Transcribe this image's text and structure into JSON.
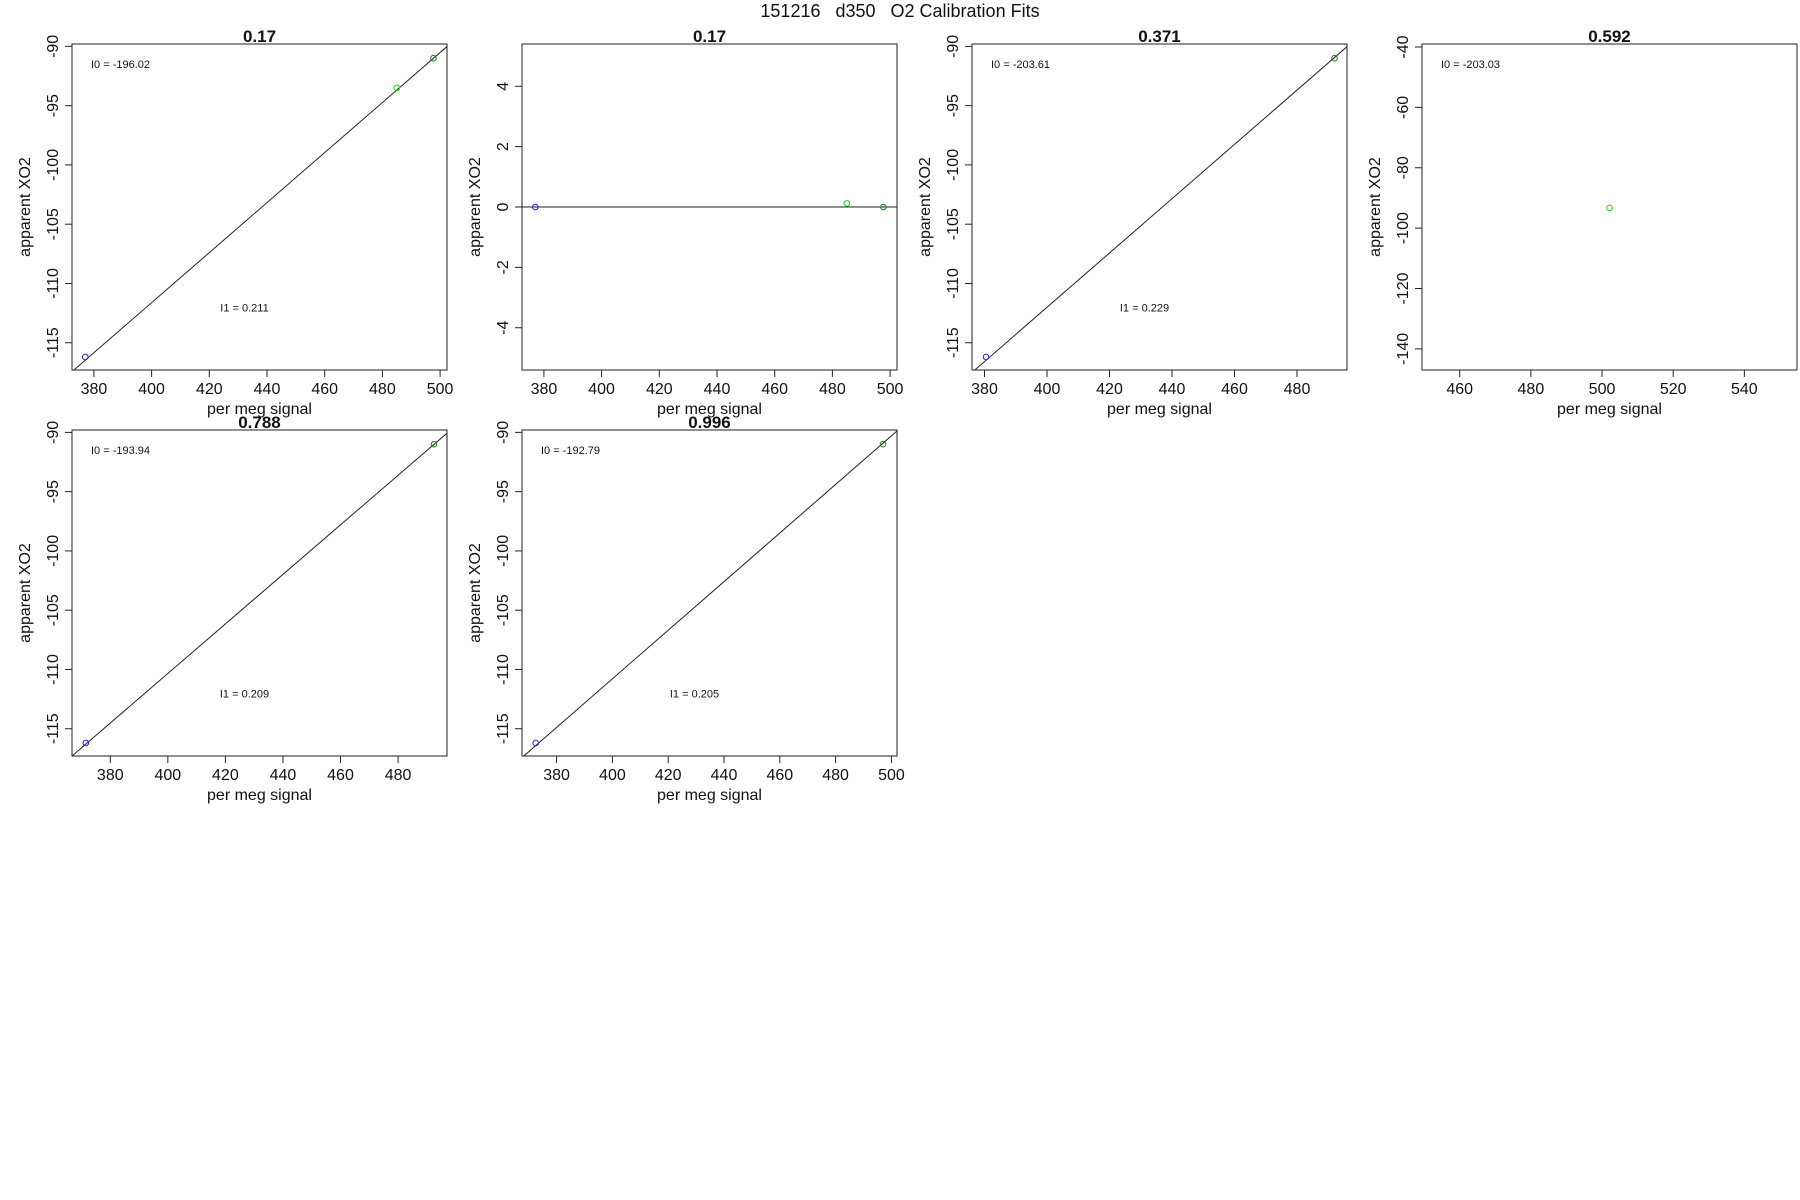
{
  "figure": {
    "title": "151216   d350   O2 Calibration Fits"
  },
  "chart_data": [
    {
      "type": "scatter",
      "title": "0.17",
      "xlabel": "per meg signal",
      "ylabel": "apparent XO2",
      "xticks": [
        380,
        400,
        420,
        440,
        460,
        480,
        500
      ],
      "yticks": [
        -90,
        -95,
        -100,
        -105,
        -110,
        -115
      ],
      "xlim": [
        372.4,
        502.4
      ],
      "ylim": [
        -117.3,
        -89.8
      ],
      "points": [
        {
          "x": 377.0,
          "y": -116.2,
          "color": "#2222cc"
        },
        {
          "x": 485.0,
          "y": -93.5,
          "color": "#22cc22"
        },
        {
          "x": 497.7,
          "y": -91.0,
          "color": "#227722"
        }
      ],
      "fit": {
        "intercept": -196.02,
        "slope": 0.211
      },
      "annotations": [
        {
          "text": "I0 =  -196.02",
          "pos": "top-left"
        },
        {
          "text": "I1 =  0.211",
          "pos": "center-low"
        }
      ],
      "grid": false
    },
    {
      "type": "scatter",
      "title": "0.17",
      "xlabel": "per meg signal",
      "ylabel": "apparent XO2",
      "xticks": [
        380,
        400,
        420,
        440,
        460,
        480,
        500
      ],
      "yticks": [
        4,
        2,
        0,
        -2,
        -4
      ],
      "xlim": [
        372.4,
        502.4
      ],
      "ylim": [
        -5.4,
        5.4
      ],
      "points": [
        {
          "x": 377.0,
          "y": 0.0,
          "color": "#2222cc"
        },
        {
          "x": 485.0,
          "y": 0.12,
          "color": "#22cc22"
        },
        {
          "x": 497.7,
          "y": 0.0,
          "color": "#227722"
        }
      ],
      "fit": {
        "intercept": 0,
        "slope": 0
      },
      "annotations": [],
      "grid": false
    },
    {
      "type": "scatter",
      "title": "0.371",
      "xlabel": "per meg signal",
      "ylabel": "apparent XO2",
      "xticks": [
        380,
        400,
        420,
        440,
        460,
        480
      ],
      "yticks": [
        -90,
        -95,
        -100,
        -105,
        -110,
        -115
      ],
      "xlim": [
        376.0,
        496.0
      ],
      "ylim": [
        -117.3,
        -89.8
      ],
      "points": [
        {
          "x": 380.5,
          "y": -116.2,
          "color": "#2222cc"
        },
        {
          "x": 492.0,
          "y": -91.0,
          "color": "#227722"
        }
      ],
      "fit": {
        "intercept": -203.61,
        "slope": 0.229
      },
      "annotations": [
        {
          "text": "I0 =  -203.61",
          "pos": "top-left"
        },
        {
          "text": "I1 =  0.229",
          "pos": "center-low"
        }
      ],
      "grid": false
    },
    {
      "type": "scatter",
      "title": "0.592",
      "xlabel": "per meg signal",
      "ylabel": "apparent XO2",
      "xticks": [
        460,
        480,
        500,
        520,
        540
      ],
      "yticks": [
        -40,
        -60,
        -80,
        -100,
        -120,
        -140
      ],
      "xlim": [
        449.4,
        554.8
      ],
      "ylim": [
        -147.0,
        -39.0
      ],
      "points": [
        {
          "x": 502.1,
          "y": -93.3,
          "color": "#22cc22"
        }
      ],
      "fit": null,
      "annotations": [
        {
          "text": "I0 =  -203.03",
          "pos": "top-left"
        }
      ],
      "grid": false
    },
    {
      "type": "scatter",
      "title": "0.788",
      "xlabel": "per meg signal",
      "ylabel": "apparent XO2",
      "xticks": [
        380,
        400,
        420,
        440,
        460,
        480
      ],
      "yticks": [
        -90,
        -95,
        -100,
        -105,
        -110,
        -115
      ],
      "xlim": [
        366.7,
        497.0
      ],
      "ylim": [
        -117.3,
        -89.8
      ],
      "points": [
        {
          "x": 371.5,
          "y": -116.2,
          "color": "#2222cc"
        },
        {
          "x": 492.5,
          "y": -91.0,
          "color": "#227722"
        }
      ],
      "fit": {
        "intercept": -193.94,
        "slope": 0.209
      },
      "annotations": [
        {
          "text": "I0 =  -193.94",
          "pos": "top-left"
        },
        {
          "text": "I1 =  0.209",
          "pos": "center-low"
        }
      ],
      "grid": false
    },
    {
      "type": "scatter",
      "title": "0.996",
      "xlabel": "per meg signal",
      "ylabel": "apparent XO2",
      "xticks": [
        380,
        400,
        420,
        440,
        460,
        480,
        500
      ],
      "yticks": [
        -90,
        -95,
        -100,
        -105,
        -110,
        -115
      ],
      "xlim": [
        367.6,
        502.0
      ],
      "ylim": [
        -117.3,
        -89.8
      ],
      "points": [
        {
          "x": 372.5,
          "y": -116.2,
          "color": "#2222cc"
        },
        {
          "x": 497.0,
          "y": -91.0,
          "color": "#227722"
        }
      ],
      "fit": {
        "intercept": -192.79,
        "slope": 0.205
      },
      "annotations": [
        {
          "text": "I0 =  -192.79",
          "pos": "top-left"
        },
        {
          "text": "I1 =  0.205",
          "pos": "center-low"
        }
      ],
      "grid": false
    }
  ]
}
